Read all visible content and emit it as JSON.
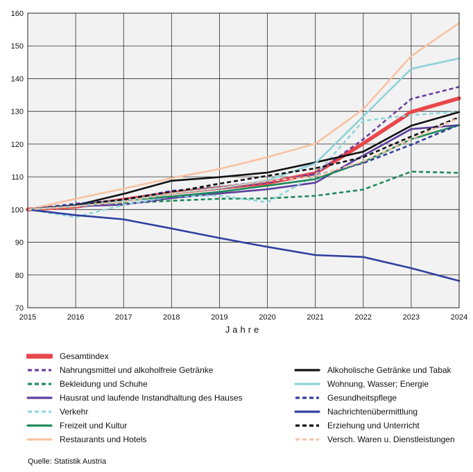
{
  "chart_data": {
    "type": "line",
    "xlabel": "Jahre",
    "ylabel": "",
    "x": [
      2015,
      2016,
      2017,
      2018,
      2019,
      2020,
      2021,
      2022,
      2023,
      2024
    ],
    "xticks": [
      "2015",
      "2016",
      "2017",
      "2018",
      "2019",
      "2020",
      "2021",
      "2022",
      "2023",
      "2024"
    ],
    "ylim": [
      70,
      160
    ],
    "yticks": [
      "70",
      "80",
      "90",
      "100",
      "110",
      "120",
      "130",
      "140",
      "150",
      "160"
    ],
    "grid": true,
    "legend_position": "bottom",
    "series": [
      {
        "name": "Gesamtindex",
        "color": "#e8474b",
        "style": "solid",
        "width": "thick",
        "values": [
          100,
          100.9,
          103.0,
          105.1,
          106.6,
          108.1,
          111.1,
          120.2,
          129.8,
          134.0
        ]
      },
      {
        "name": "Nahrungsmittel und alkoholfreie Getränke",
        "color": "#6b3fa0",
        "style": "dashed",
        "width": "normal",
        "values": [
          100,
          101.8,
          103.0,
          105.5,
          106.4,
          108.2,
          111.0,
          121.5,
          133.8,
          137.5
        ]
      },
      {
        "name": "Bekleidung und Schuhe",
        "color": "#1e8a5a",
        "style": "dashed",
        "width": "normal",
        "values": [
          100,
          101.2,
          101.9,
          102.7,
          103.3,
          103.4,
          104.2,
          106.1,
          111.6,
          111.2
        ]
      },
      {
        "name": "Hausrat und laufende Instandhaltung des Hauses",
        "color": "#5b3f9e",
        "style": "solid",
        "width": "normal",
        "values": [
          100,
          101.0,
          101.5,
          103.5,
          104.9,
          106.2,
          108.2,
          116.5,
          124.6,
          125.8
        ]
      },
      {
        "name": "Verkehr",
        "color": "#8fd6dc",
        "style": "dashed",
        "width": "normal",
        "values": [
          100,
          97.7,
          101.4,
          104.0,
          104.3,
          102.2,
          110.5,
          127.1,
          128.9,
          129.9
        ]
      },
      {
        "name": "Freizeit und Kultur",
        "color": "#1e8a5a",
        "style": "solid",
        "width": "normal",
        "values": [
          100,
          101.3,
          102.7,
          104.0,
          105.4,
          107.3,
          109.3,
          114.5,
          121.5,
          125.8
        ]
      },
      {
        "name": "Restaurants und Hotels",
        "color": "#f7c2a2",
        "style": "solid",
        "width": "normal",
        "values": [
          100,
          103.3,
          106.4,
          109.6,
          112.4,
          116.0,
          120.1,
          130.7,
          146.9,
          157.0
        ]
      },
      {
        "name": "Alkoholische Getränke und Tabak",
        "color": "#111111",
        "style": "solid",
        "width": "normal",
        "values": [
          100,
          101.3,
          104.8,
          108.8,
          109.9,
          111.3,
          114.4,
          117.7,
          125.6,
          129.8
        ]
      },
      {
        "name": "Wohnung, Wasser; Energie",
        "color": "#8fd2d8",
        "style": "solid",
        "width": "normal",
        "values": [
          100,
          101.0,
          102.7,
          104.9,
          106.5,
          108.9,
          114.1,
          128.5,
          143.0,
          146.2
        ]
      },
      {
        "name": "Gesundheitspflege",
        "color": "#2f3f9e",
        "style": "dashed",
        "width": "normal",
        "values": [
          100,
          101.7,
          103.0,
          105.7,
          106.9,
          108.7,
          110.4,
          114.2,
          119.8,
          125.9
        ]
      },
      {
        "name": "Nachrichtenübermittlung",
        "color": "#2f3f9e",
        "style": "solid",
        "width": "normal",
        "values": [
          100,
          98.3,
          97.0,
          94.2,
          91.3,
          88.6,
          86.1,
          85.5,
          82.1,
          78.2
        ]
      },
      {
        "name": "Erziehung und Unterricht",
        "color": "#111111",
        "style": "dashed",
        "width": "normal",
        "values": [
          100,
          101.2,
          103.1,
          105.3,
          107.9,
          110.3,
          112.6,
          116.0,
          122.3,
          128.2
        ]
      },
      {
        "name": "Versch. Waren u. Dienstleistungen",
        "color": "#f7c2a2",
        "style": "dashed",
        "width": "normal",
        "values": [
          100,
          101.0,
          102.4,
          104.9,
          106.7,
          108.7,
          110.2,
          114.7,
          121.5,
          128.0
        ]
      }
    ]
  },
  "source": "Quelle: Statistik Austria"
}
